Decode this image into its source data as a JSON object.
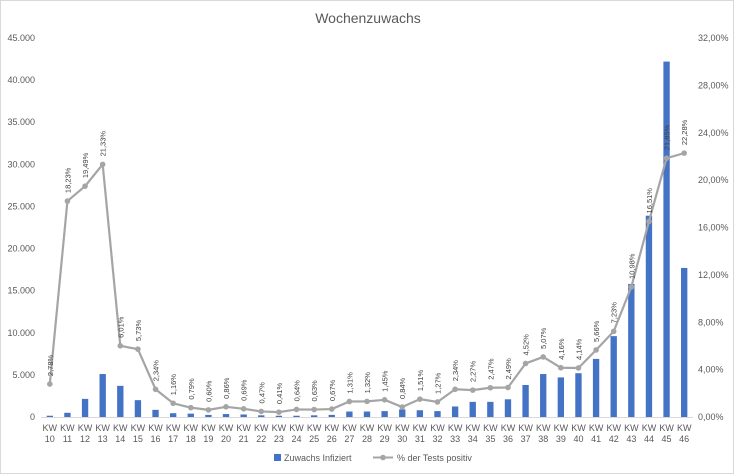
{
  "chart_data": {
    "type": "bar+line",
    "title": "Wochenzuwachs",
    "categories": [
      "KW 10",
      "KW 11",
      "KW 12",
      "KW 13",
      "KW 14",
      "KW 15",
      "KW 16",
      "KW 17",
      "KW 18",
      "KW 19",
      "KW 20",
      "KW 21",
      "KW 22",
      "KW 23",
      "KW 24",
      "KW 25",
      "KW 26",
      "KW 27",
      "KW 28",
      "KW 29",
      "KW 30",
      "KW 31",
      "KW 32",
      "KW 33",
      "KW 34",
      "KW 35",
      "KW 36",
      "KW 37",
      "KW 38",
      "KW 39",
      "KW 40",
      "KW 41",
      "KW 42",
      "KW 43",
      "KW 44",
      "KW 45",
      "KW 46"
    ],
    "series": [
      {
        "name": "Zuwachs Infiziert",
        "type": "bar",
        "axis": "left",
        "color": "#4472c4",
        "values": [
          150,
          500,
          2150,
          5100,
          3700,
          2000,
          850,
          450,
          400,
          250,
          350,
          300,
          200,
          150,
          150,
          200,
          250,
          650,
          650,
          700,
          900,
          800,
          700,
          1250,
          1800,
          1800,
          2100,
          3800,
          5100,
          4700,
          5200,
          6900,
          9600,
          15800,
          23900,
          42200,
          17700
        ]
      },
      {
        "name": "% der Tests positiv",
        "type": "line",
        "axis": "right",
        "color": "#a5a5a5",
        "values": [
          2.78,
          18.23,
          19.49,
          21.33,
          6.01,
          5.73,
          2.34,
          1.16,
          0.79,
          0.6,
          0.86,
          0.69,
          0.47,
          0.41,
          0.64,
          0.63,
          0.67,
          1.31,
          1.32,
          1.45,
          0.84,
          1.51,
          1.27,
          2.34,
          2.27,
          2.47,
          2.49,
          4.52,
          5.07,
          4.16,
          4.14,
          5.66,
          7.23,
          10.98,
          16.51,
          21.85,
          22.28
        ],
        "labels": [
          "2,78%",
          "18,23%",
          "19,49%",
          "21,33%",
          "6,01%",
          "5,73%",
          "2,34%",
          "1,16%",
          "0,79%",
          "0,60%",
          "0,86%",
          "0,69%",
          "0,47%",
          "0,41%",
          "0,64%",
          "0,63%",
          "0,67%",
          "1,31%",
          "1,32%",
          "1,45%",
          "0,84%",
          "1,51%",
          "1,27%",
          "2,34%",
          "2,27%",
          "2,47%",
          "2,49%",
          "4,52%",
          "5,07%",
          "4,16%",
          "4,14%",
          "5,66%",
          "7,23%",
          "10,98%",
          "16,51%",
          "21,85%",
          "22,28%"
        ]
      }
    ],
    "y_left": {
      "ylim": [
        0,
        45000
      ],
      "ticks": [
        0,
        5000,
        10000,
        15000,
        20000,
        25000,
        30000,
        35000,
        40000,
        45000
      ],
      "tick_labels": [
        "0",
        "5.000",
        "10.000",
        "15.000",
        "20.000",
        "25.000",
        "30.000",
        "35.000",
        "40.000",
        "45.000"
      ]
    },
    "y_right": {
      "ylim": [
        0,
        32
      ],
      "ticks": [
        0,
        4,
        8,
        12,
        16,
        20,
        24,
        28,
        32
      ],
      "tick_labels": [
        "0,00%",
        "4,00%",
        "8,00%",
        "12,00%",
        "16,00%",
        "20,00%",
        "24,00%",
        "28,00%",
        "32,00%"
      ]
    },
    "grid": false,
    "legend_position": "bottom"
  }
}
